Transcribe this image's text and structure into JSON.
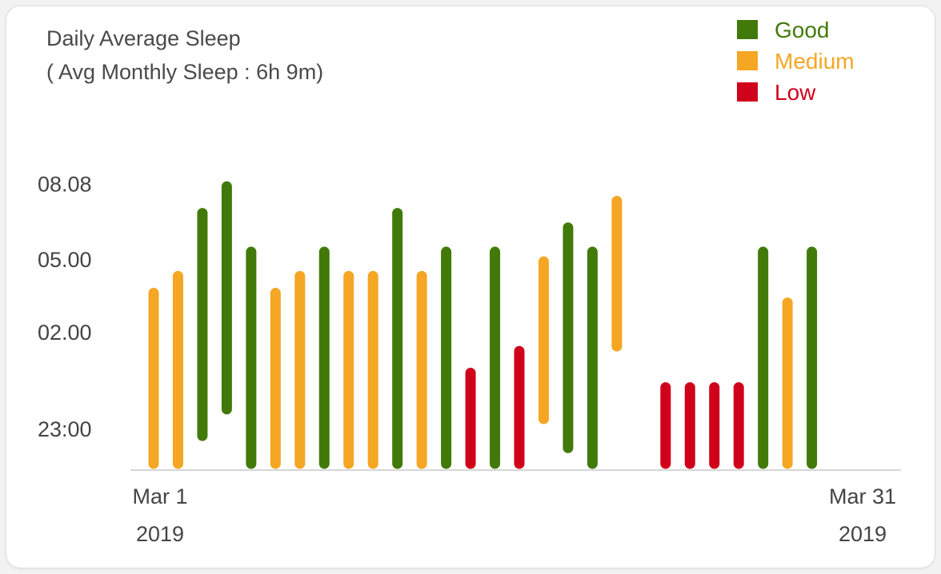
{
  "chart_data": {
    "type": "bar",
    "title": "Daily Average Sleep",
    "subtitle": "( Avg Monthly Sleep : 6h 9m)",
    "y_ticks": [
      "08.08",
      "05.00",
      "02.00",
      "23:00"
    ],
    "y_tick_values": [
      33.13,
      30.0,
      27.0,
      23.0
    ],
    "ylim": [
      21.55,
      34.1
    ],
    "x_ticks": [
      {
        "day": 1,
        "label": "Mar 1",
        "sublabel": "2019"
      },
      {
        "day": 31,
        "label": "Mar 31",
        "sublabel": "2019"
      }
    ],
    "xlim": [
      1,
      31
    ],
    "legend": {
      "position": "top-right",
      "items": [
        {
          "key": "good",
          "label": "Good",
          "color": "#427A0A"
        },
        {
          "key": "medium",
          "label": "Medium",
          "color": "#F5A623"
        },
        {
          "key": "low",
          "label": "Low",
          "color": "#D0021B"
        }
      ]
    },
    "series_description": "Each bar spans from bedtime (bottom) to wake time (top) in hours since midnight of the previous day",
    "bars": [
      {
        "day": 1,
        "start": 21.55,
        "end": 28.6,
        "quality": "medium"
      },
      {
        "day": 2,
        "start": 21.55,
        "end": 29.3,
        "quality": "medium"
      },
      {
        "day": 3,
        "start": 22.7,
        "end": 31.9,
        "quality": "good"
      },
      {
        "day": 4,
        "start": 23.8,
        "end": 33.0,
        "quality": "good"
      },
      {
        "day": 5,
        "start": 21.55,
        "end": 30.3,
        "quality": "good"
      },
      {
        "day": 6,
        "start": 21.55,
        "end": 28.6,
        "quality": "medium"
      },
      {
        "day": 7,
        "start": 21.55,
        "end": 29.3,
        "quality": "medium"
      },
      {
        "day": 8,
        "start": 21.55,
        "end": 30.3,
        "quality": "good"
      },
      {
        "day": 9,
        "start": 21.55,
        "end": 29.3,
        "quality": "medium"
      },
      {
        "day": 10,
        "start": 21.55,
        "end": 29.3,
        "quality": "medium"
      },
      {
        "day": 11,
        "start": 21.55,
        "end": 31.9,
        "quality": "good"
      },
      {
        "day": 12,
        "start": 21.55,
        "end": 29.3,
        "quality": "medium"
      },
      {
        "day": 13,
        "start": 21.55,
        "end": 30.3,
        "quality": "good"
      },
      {
        "day": 14,
        "start": 21.55,
        "end": 25.3,
        "quality": "low"
      },
      {
        "day": 15,
        "start": 21.55,
        "end": 30.3,
        "quality": "good"
      },
      {
        "day": 16,
        "start": 21.55,
        "end": 26.2,
        "quality": "low"
      },
      {
        "day": 17,
        "start": 23.4,
        "end": 29.9,
        "quality": "medium"
      },
      {
        "day": 18,
        "start": 22.2,
        "end": 31.3,
        "quality": "good"
      },
      {
        "day": 19,
        "start": 21.55,
        "end": 30.3,
        "quality": "good"
      },
      {
        "day": 20,
        "start": 26.4,
        "end": 32.4,
        "quality": "medium"
      },
      {
        "day": 22,
        "start": 21.55,
        "end": 24.7,
        "quality": "low"
      },
      {
        "day": 23,
        "start": 21.55,
        "end": 24.7,
        "quality": "low"
      },
      {
        "day": 24,
        "start": 21.55,
        "end": 24.7,
        "quality": "low"
      },
      {
        "day": 25,
        "start": 21.55,
        "end": 24.7,
        "quality": "low"
      },
      {
        "day": 26,
        "start": 21.55,
        "end": 30.3,
        "quality": "good"
      },
      {
        "day": 27,
        "start": 21.55,
        "end": 28.2,
        "quality": "medium"
      },
      {
        "day": 28,
        "start": 21.55,
        "end": 30.3,
        "quality": "good"
      }
    ]
  }
}
